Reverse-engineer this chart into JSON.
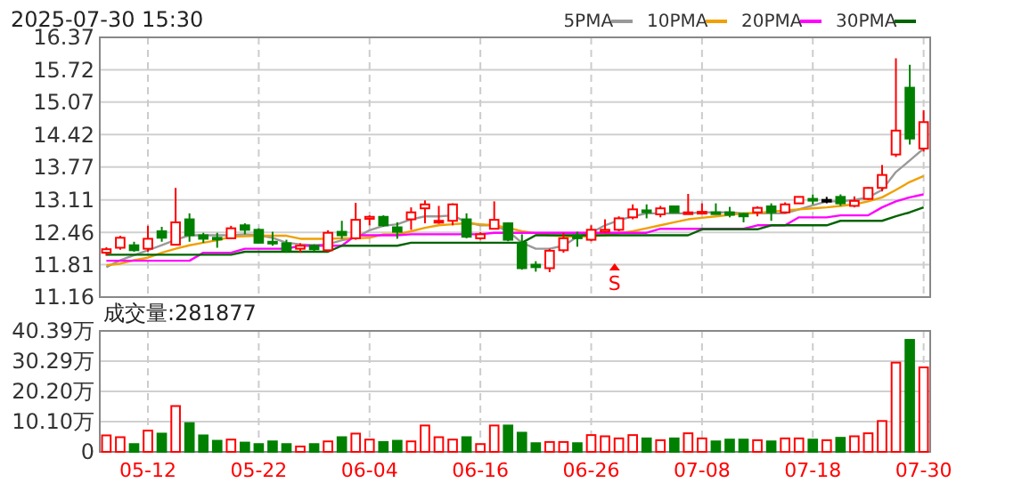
{
  "chart_data": [
    {
      "type": "candlestick",
      "title": "2025-07-30 15:30",
      "categories": [
        null,
        null,
        null,
        null,
        null,
        null,
        null,
        null,
        null,
        null,
        null,
        null,
        null,
        null,
        null,
        null,
        null,
        null,
        null,
        null,
        null,
        null,
        null,
        null,
        null,
        null,
        null,
        null,
        null,
        null,
        null,
        null,
        null,
        null,
        null,
        null,
        null,
        null,
        null,
        null,
        null,
        null,
        null,
        null,
        null,
        null,
        null,
        null,
        null,
        null,
        null,
        null,
        null,
        null,
        null,
        null,
        null,
        null,
        null,
        null
      ],
      "ohlc": [
        [
          12.05,
          12.16,
          11.99,
          12.12
        ],
        [
          12.15,
          12.39,
          12.11,
          12.35
        ],
        [
          12.2,
          12.27,
          12.07,
          12.1
        ],
        [
          12.13,
          12.59,
          12.07,
          12.33
        ],
        [
          12.48,
          12.57,
          12.27,
          12.35
        ],
        [
          12.21,
          13.35,
          12.21,
          12.66
        ],
        [
          12.72,
          12.84,
          12.27,
          12.4
        ],
        [
          12.4,
          12.45,
          12.25,
          12.33
        ],
        [
          12.35,
          12.45,
          12.15,
          12.33
        ],
        [
          12.34,
          12.59,
          12.33,
          12.54
        ],
        [
          12.6,
          12.64,
          12.42,
          12.51
        ],
        [
          12.51,
          12.54,
          12.23,
          12.25
        ],
        [
          12.27,
          12.47,
          12.19,
          12.25
        ],
        [
          12.24,
          12.31,
          12.05,
          12.1
        ],
        [
          12.13,
          12.24,
          12.05,
          12.19
        ],
        [
          12.19,
          12.22,
          12.08,
          12.12
        ],
        [
          12.1,
          12.5,
          12.07,
          12.45
        ],
        [
          12.47,
          12.69,
          12.33,
          12.4
        ],
        [
          12.34,
          13.05,
          12.31,
          12.71
        ],
        [
          12.73,
          12.8,
          12.6,
          12.77
        ],
        [
          12.77,
          12.8,
          12.57,
          12.6
        ],
        [
          12.56,
          12.66,
          12.33,
          12.47
        ],
        [
          12.72,
          12.96,
          12.51,
          12.86
        ],
        [
          12.94,
          13.1,
          12.64,
          13.02
        ],
        [
          12.66,
          12.99,
          12.63,
          12.69
        ],
        [
          12.69,
          13.04,
          12.6,
          13.02
        ],
        [
          12.72,
          12.84,
          12.34,
          12.37
        ],
        [
          12.34,
          12.46,
          12.31,
          12.42
        ],
        [
          12.53,
          13.08,
          12.52,
          12.71
        ],
        [
          12.64,
          12.66,
          12.28,
          12.31
        ],
        [
          12.25,
          12.42,
          11.71,
          11.74
        ],
        [
          11.81,
          11.88,
          11.67,
          11.76
        ],
        [
          11.74,
          12.13,
          11.66,
          12.09
        ],
        [
          12.1,
          12.45,
          12.05,
          12.34
        ],
        [
          12.4,
          12.47,
          12.17,
          12.34
        ],
        [
          12.31,
          12.6,
          12.28,
          12.51
        ],
        [
          12.47,
          12.72,
          12.45,
          12.51
        ],
        [
          12.51,
          12.78,
          12.48,
          12.74
        ],
        [
          12.76,
          13.02,
          12.72,
          12.92
        ],
        [
          12.9,
          13.02,
          12.74,
          12.86
        ],
        [
          12.82,
          12.99,
          12.76,
          12.94
        ],
        [
          12.98,
          12.98,
          12.86,
          12.86
        ],
        [
          12.84,
          13.23,
          12.84,
          12.86
        ],
        [
          12.84,
          13.04,
          12.84,
          12.87
        ],
        [
          12.86,
          13.04,
          12.82,
          12.83
        ],
        [
          12.86,
          12.97,
          12.76,
          12.81
        ],
        [
          12.83,
          12.85,
          12.66,
          12.78
        ],
        [
          12.86,
          12.98,
          12.78,
          12.95
        ],
        [
          12.98,
          13.04,
          12.69,
          12.86
        ],
        [
          12.86,
          13.06,
          12.84,
          13.02
        ],
        [
          13.04,
          13.17,
          13.04,
          13.17
        ],
        [
          13.13,
          13.22,
          13.02,
          13.1
        ],
        [
          13.11,
          13.17,
          13.04,
          13.11
        ],
        [
          13.17,
          13.22,
          12.99,
          13.04
        ],
        [
          12.99,
          13.18,
          12.96,
          13.09
        ],
        [
          13.13,
          13.37,
          13.11,
          13.35
        ],
        [
          13.35,
          13.81,
          13.28,
          13.61
        ],
        [
          14.02,
          15.95,
          13.97,
          14.5
        ],
        [
          15.36,
          15.82,
          14.22,
          14.34
        ],
        [
          14.14,
          14.91,
          14.08,
          14.67
        ]
      ],
      "colors": [
        "#ff0000",
        "#ff0000",
        "#008000",
        "#ff0000",
        "#008000",
        "#ff0000",
        "#008000",
        "#008000",
        "#008000",
        "#ff0000",
        "#008000",
        "#008000",
        "#008000",
        "#008000",
        "#ff0000",
        "#008000",
        "#ff0000",
        "#008000",
        "#ff0000",
        "#ff0000",
        "#008000",
        "#008000",
        "#ff0000",
        "#ff0000",
        "#ff0000",
        "#ff0000",
        "#008000",
        "#ff0000",
        "#ff0000",
        "#008000",
        "#008000",
        "#008000",
        "#ff0000",
        "#ff0000",
        "#008000",
        "#ff0000",
        "#ff0000",
        "#ff0000",
        "#ff0000",
        "#008000",
        "#ff0000",
        "#008000",
        "#ff0000",
        "#ff0000",
        "#008000",
        "#008000",
        "#008000",
        "#ff0000",
        "#008000",
        "#ff0000",
        "#ff0000",
        "#008000",
        "#000000",
        "#008000",
        "#ff0000",
        "#ff0000",
        "#ff0000",
        "#ff0000",
        "#008000",
        "#ff0000"
      ],
      "series": [
        {
          "name": "5PMA",
          "type": "line",
          "color": "#999999",
          "values": [
            11.76,
            11.9,
            12.0,
            12.1,
            12.2,
            12.31,
            12.4,
            12.4,
            12.4,
            12.4,
            12.42,
            12.4,
            12.35,
            12.25,
            12.22,
            12.2,
            12.22,
            12.3,
            12.35,
            12.5,
            12.59,
            12.62,
            12.72,
            12.78,
            12.78,
            12.8,
            12.66,
            12.6,
            12.6,
            12.48,
            12.25,
            12.13,
            12.13,
            12.19,
            12.37,
            12.45,
            12.6,
            12.7,
            12.78,
            12.84,
            12.84,
            12.84,
            12.84,
            12.86,
            12.86,
            12.86,
            12.84,
            12.84,
            12.84,
            12.84,
            12.92,
            13.0,
            13.08,
            13.08,
            13.11,
            13.16,
            13.31,
            13.67,
            13.9,
            14.14
          ]
        },
        {
          "name": "10PMA",
          "type": "line",
          "color": "#f0a000",
          "values": [
            11.8,
            11.83,
            11.9,
            11.95,
            12.05,
            12.13,
            12.2,
            12.25,
            12.3,
            12.37,
            12.38,
            12.39,
            12.39,
            12.39,
            12.33,
            12.33,
            12.33,
            12.34,
            12.34,
            12.35,
            12.42,
            12.42,
            12.48,
            12.55,
            12.6,
            12.62,
            12.64,
            12.62,
            12.6,
            12.55,
            12.48,
            12.44,
            12.4,
            12.38,
            12.37,
            12.38,
            12.4,
            12.44,
            12.48,
            12.54,
            12.6,
            12.66,
            12.72,
            12.75,
            12.78,
            12.81,
            12.84,
            12.85,
            12.87,
            12.9,
            12.92,
            12.94,
            12.96,
            12.99,
            13.02,
            13.08,
            13.16,
            13.31,
            13.47,
            13.59
          ]
        },
        {
          "name": "20PMA",
          "type": "line",
          "color": "#ff00ff",
          "values": [
            11.89,
            11.89,
            11.89,
            11.89,
            11.89,
            11.89,
            11.89,
            12.05,
            12.05,
            12.05,
            12.13,
            12.13,
            12.13,
            12.13,
            12.19,
            12.19,
            12.19,
            12.19,
            12.4,
            12.4,
            12.4,
            12.4,
            12.42,
            12.42,
            12.42,
            12.42,
            12.42,
            12.42,
            12.45,
            12.45,
            12.45,
            12.45,
            12.45,
            12.45,
            12.45,
            12.45,
            12.45,
            12.45,
            12.45,
            12.45,
            12.53,
            12.53,
            12.53,
            12.53,
            12.53,
            12.53,
            12.53,
            12.6,
            12.6,
            12.6,
            12.76,
            12.76,
            12.76,
            12.8,
            12.8,
            12.8,
            12.96,
            13.08,
            13.16,
            13.22
          ]
        },
        {
          "name": "30PMA",
          "type": "line",
          "color": "#006400",
          "values": [
            12.01,
            12.01,
            12.01,
            12.01,
            12.01,
            12.01,
            12.01,
            12.01,
            12.01,
            12.01,
            12.07,
            12.07,
            12.07,
            12.07,
            12.07,
            12.07,
            12.07,
            12.19,
            12.19,
            12.19,
            12.19,
            12.19,
            12.25,
            12.25,
            12.25,
            12.25,
            12.25,
            12.25,
            12.25,
            12.25,
            12.25,
            12.4,
            12.4,
            12.4,
            12.4,
            12.4,
            12.4,
            12.4,
            12.4,
            12.4,
            12.4,
            12.4,
            12.4,
            12.52,
            12.52,
            12.52,
            12.52,
            12.52,
            12.6,
            12.6,
            12.6,
            12.6,
            12.6,
            12.69,
            12.69,
            12.69,
            12.69,
            12.78,
            12.86,
            12.96
          ]
        }
      ],
      "ylim": [
        11.16,
        16.37
      ],
      "yticks": [
        11.16,
        11.81,
        12.46,
        13.11,
        13.77,
        14.42,
        15.07,
        15.72,
        16.37
      ],
      "grid": true,
      "legend": "top right",
      "tick_labels": "y",
      "annotations": [
        "S"
      ]
    },
    {
      "type": "bar",
      "title": "成交量:281877",
      "categories": [
        null,
        null,
        null,
        "05-12",
        null,
        null,
        null,
        null,
        null,
        null,
        null,
        "05-22",
        null,
        null,
        null,
        null,
        null,
        null,
        null,
        "06-04",
        null,
        null,
        null,
        null,
        null,
        null,
        null,
        "06-16",
        null,
        null,
        null,
        null,
        null,
        null,
        null,
        "06-26",
        null,
        null,
        null,
        null,
        null,
        null,
        null,
        "07-08",
        null,
        null,
        null,
        null,
        null,
        null,
        null,
        "07-18",
        null,
        null,
        null,
        null,
        null,
        null,
        null,
        "07-30"
      ],
      "values": [
        5.5,
        4.9,
        2.6,
        7.1,
        6.1,
        15.3,
        9.6,
        5.5,
        3.7,
        4.1,
        3.1,
        2.6,
        3.5,
        2.6,
        1.8,
        2.6,
        3.5,
        4.9,
        6.1,
        4.1,
        3.3,
        3.7,
        3.5,
        8.8,
        4.9,
        4.1,
        4.9,
        2.6,
        8.8,
        8.8,
        6.4,
        2.9,
        3.3,
        3.3,
        2.9,
        5.6,
        5.2,
        4.5,
        5.6,
        4.5,
        3.9,
        4.5,
        6.2,
        4.5,
        3.5,
        4.1,
        4.1,
        3.9,
        3.5,
        4.5,
        4.5,
        4.1,
        3.9,
        4.7,
        5.2,
        6.2,
        10.3,
        29.8,
        37.4,
        28.2
      ],
      "colors": [
        "#ff0000",
        "#ff0000",
        "#008000",
        "#ff0000",
        "#008000",
        "#ff0000",
        "#008000",
        "#008000",
        "#008000",
        "#ff0000",
        "#008000",
        "#008000",
        "#008000",
        "#008000",
        "#ff0000",
        "#008000",
        "#ff0000",
        "#008000",
        "#ff0000",
        "#ff0000",
        "#008000",
        "#008000",
        "#ff0000",
        "#ff0000",
        "#ff0000",
        "#ff0000",
        "#008000",
        "#ff0000",
        "#ff0000",
        "#008000",
        "#008000",
        "#008000",
        "#ff0000",
        "#ff0000",
        "#008000",
        "#ff0000",
        "#ff0000",
        "#ff0000",
        "#ff0000",
        "#008000",
        "#ff0000",
        "#008000",
        "#ff0000",
        "#ff0000",
        "#008000",
        "#008000",
        "#008000",
        "#ff0000",
        "#008000",
        "#ff0000",
        "#ff0000",
        "#008000",
        "#ff0000",
        "#008000",
        "#ff0000",
        "#ff0000",
        "#ff0000",
        "#ff0000",
        "#008000",
        "#ff0000"
      ],
      "ylim": [
        0,
        40.39
      ],
      "yticks": [
        0,
        {
          "value": 10.1,
          "label": "10.10万"
        },
        {
          "value": 20.2,
          "label": "20.20万"
        },
        {
          "value": 30.29,
          "label": "30.29万"
        },
        {
          "value": 40.39,
          "label": "40.39万"
        }
      ],
      "grid": true
    }
  ]
}
